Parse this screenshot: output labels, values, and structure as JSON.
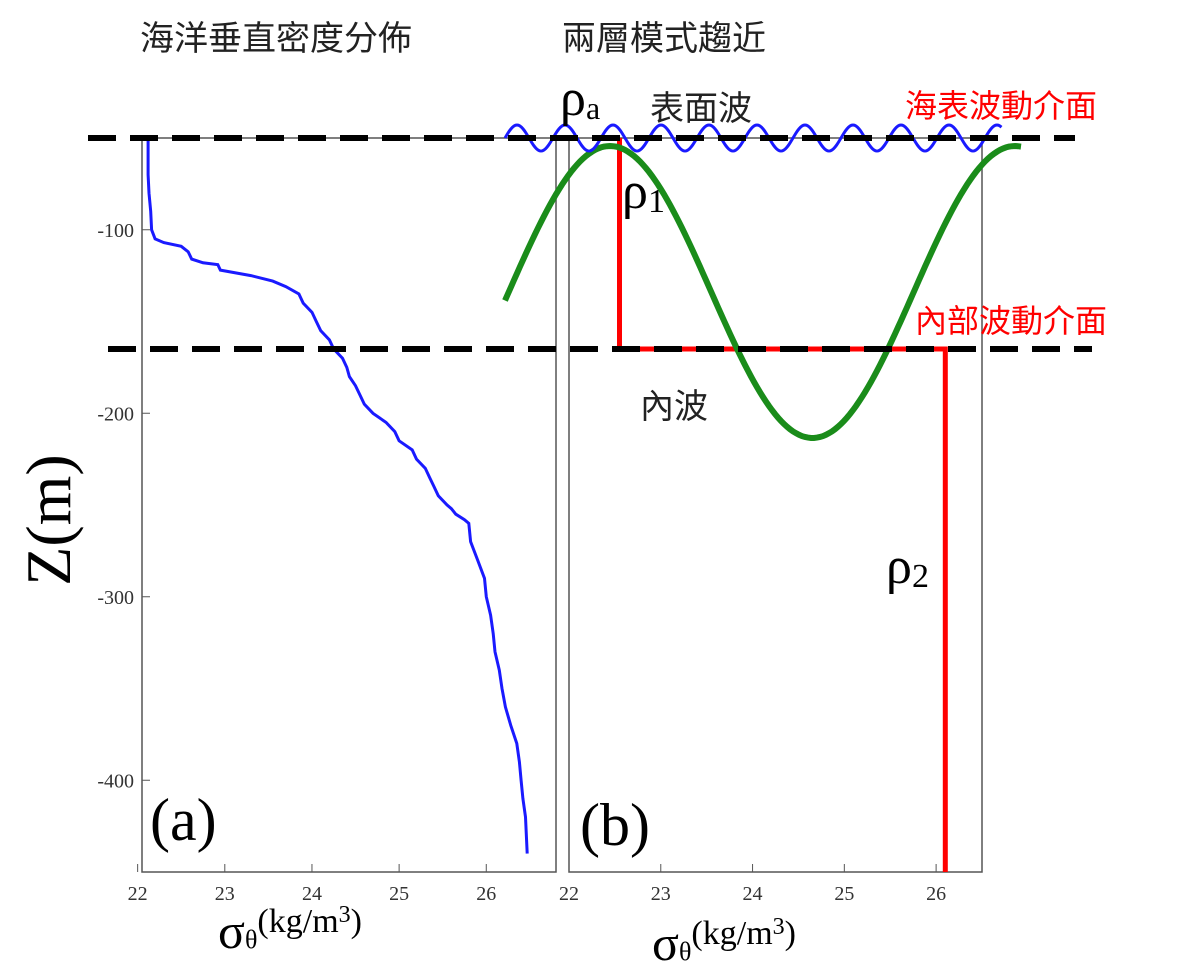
{
  "titles": {
    "left": "海洋垂直密度分佈",
    "right": "兩層模式趨近"
  },
  "labels": {
    "rho_a_base": "ρ",
    "rho_a_sub": "a",
    "rho1_base": "ρ",
    "rho1_sub": "1",
    "rho2_base": "ρ",
    "rho2_sub": "2",
    "surface_wave": "表面波",
    "internal_wave": "內波",
    "sea_surface_interface": "海表波動介面",
    "internal_interface": "內部波動介面",
    "panel_a": "(a)",
    "panel_b": "(b)",
    "ylabel": "Z(m)",
    "xlabel_sigma": "σ",
    "xlabel_sub": "θ",
    "xlabel_unit": "(kg/m",
    "xlabel_exp": "3",
    "xlabel_close": ")"
  },
  "colors": {
    "profile": "#1a1aff",
    "step": "#ff0000",
    "internal_wave": "#1a8c1a",
    "surface_wave": "#1a1aff",
    "interface_label": "#ff0000",
    "dash": "#000000"
  },
  "chart_data": [
    {
      "type": "line",
      "panel": "a",
      "title": "海洋垂直密度分佈",
      "xlabel": "σθ(kg/m3)",
      "ylabel": "Z(m)",
      "xlim": [
        22.05,
        26.8
      ],
      "ylim": [
        -450,
        -50
      ],
      "xticks": [
        22,
        23,
        24,
        25,
        26
      ],
      "yticks": [
        -100,
        -200,
        -300,
        -400
      ],
      "series": [
        {
          "x": [
            22.12,
            22.12,
            22.13,
            22.15,
            22.16,
            22.2,
            22.3,
            22.5,
            22.58,
            22.62,
            22.75,
            22.92,
            22.95,
            23.3,
            23.55,
            23.7,
            23.85,
            23.9,
            24.0,
            24.05,
            24.1,
            24.2,
            24.25,
            24.35,
            24.4,
            24.43,
            24.5,
            24.55,
            24.6,
            24.7,
            24.85,
            24.95,
            25.0,
            25.15,
            25.2,
            25.3,
            25.35,
            25.4,
            25.45,
            25.55,
            25.6,
            25.65,
            25.75,
            25.8,
            25.82,
            25.9,
            25.98,
            26.0,
            26.05,
            26.08,
            26.1,
            26.15,
            26.18,
            26.22,
            26.28,
            26.35,
            26.38,
            26.4,
            26.42,
            26.45,
            26.47
          ],
          "y": [
            -50,
            -70,
            -80,
            -90,
            -100,
            -105,
            -107,
            -109,
            -112,
            -116,
            -118,
            -119,
            -122,
            -125,
            -128,
            -131,
            -135,
            -140,
            -145,
            -150,
            -155,
            -160,
            -165,
            -170,
            -175,
            -180,
            -185,
            -190,
            -195,
            -200,
            -205,
            -210,
            -215,
            -220,
            -225,
            -230,
            -235,
            -240,
            -245,
            -250,
            -252,
            -255,
            -258,
            -260,
            -270,
            -280,
            -290,
            -300,
            -310,
            -320,
            -330,
            -340,
            -350,
            -360,
            -370,
            -380,
            -390,
            -400,
            -410,
            -420,
            -440
          ]
        }
      ]
    },
    {
      "type": "line",
      "panel": "b",
      "title": "兩層模式趨近",
      "xlabel": "σθ(kg/m3)",
      "xlim": [
        22.0,
        26.5
      ],
      "ylim": [
        -450,
        -50
      ],
      "xticks": [
        22,
        23,
        24,
        25,
        26
      ],
      "series": [
        {
          "x": [
            22.55,
            22.55,
            26.1,
            26.1
          ],
          "y": [
            -50,
            -165,
            -165,
            -450
          ]
        }
      ],
      "interfaces_z": [
        -50,
        -165
      ]
    }
  ]
}
